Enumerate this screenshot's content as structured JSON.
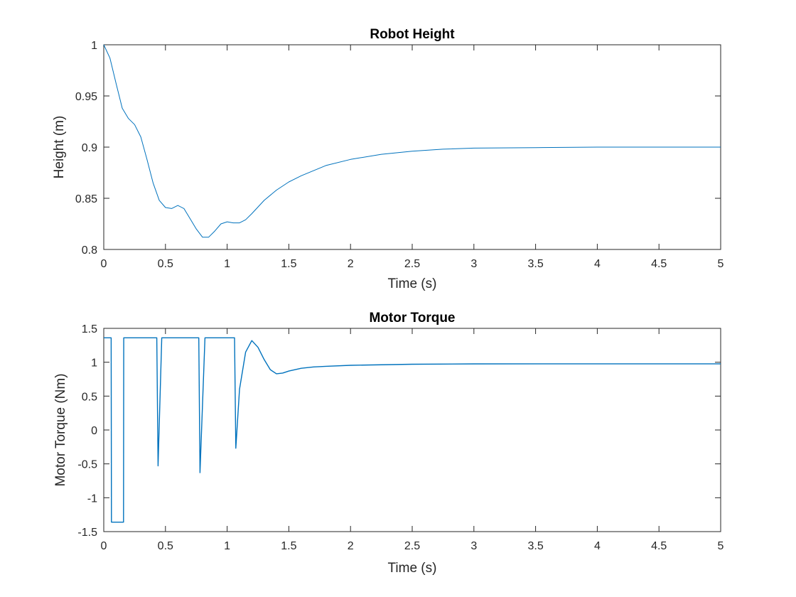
{
  "chart_data": [
    {
      "type": "line",
      "title": "Robot Height",
      "xlabel": "Time (s)",
      "ylabel": "Height (m)",
      "xlim": [
        0,
        5
      ],
      "ylim": [
        0.8,
        1
      ],
      "x_ticks": [
        "0",
        "0.5",
        "1",
        "1.5",
        "2",
        "2.5",
        "3",
        "3.5",
        "4",
        "4.5",
        "5"
      ],
      "y_ticks": [
        "0.8",
        "0.85",
        "0.9",
        "0.95",
        "1"
      ],
      "grid": false,
      "series_color": "#0072BD",
      "series": [
        {
          "x": [
            0,
            0.05,
            0.1,
            0.15,
            0.2,
            0.25,
            0.3,
            0.35,
            0.4,
            0.45,
            0.5,
            0.55,
            0.6,
            0.65,
            0.7,
            0.75,
            0.8,
            0.85,
            0.9,
            0.95,
            1.0,
            1.05,
            1.1,
            1.15,
            1.2,
            1.3,
            1.4,
            1.5,
            1.6,
            1.8,
            2.0,
            2.25,
            2.5,
            2.75,
            3.0,
            3.5,
            4.0,
            4.5,
            5.0
          ],
          "values": [
            1.0,
            0.987,
            0.962,
            0.938,
            0.928,
            0.922,
            0.91,
            0.888,
            0.865,
            0.848,
            0.841,
            0.84,
            0.843,
            0.84,
            0.83,
            0.82,
            0.812,
            0.812,
            0.818,
            0.825,
            0.827,
            0.826,
            0.826,
            0.829,
            0.835,
            0.848,
            0.858,
            0.866,
            0.872,
            0.882,
            0.888,
            0.893,
            0.896,
            0.898,
            0.899,
            0.8995,
            0.9,
            0.9,
            0.9
          ]
        }
      ]
    },
    {
      "type": "line",
      "title": "Motor Torque",
      "xlabel": "Time (s)",
      "ylabel": "Motor Torque (Nm)",
      "xlim": [
        0,
        5
      ],
      "ylim": [
        -1.5,
        1.5
      ],
      "x_ticks": [
        "0",
        "0.5",
        "1",
        "1.5",
        "2",
        "2.5",
        "3",
        "3.5",
        "4",
        "4.5",
        "5"
      ],
      "y_ticks": [
        "-1.5",
        "-1",
        "-0.5",
        "0",
        "0.5",
        "1",
        "1.5"
      ],
      "grid": false,
      "series_color": "#0072BD",
      "series": [
        {
          "x": [
            0,
            0.06,
            0.062,
            0.16,
            0.162,
            0.43,
            0.44,
            0.47,
            0.77,
            0.78,
            0.82,
            1.06,
            1.07,
            1.1,
            1.15,
            1.2,
            1.25,
            1.3,
            1.35,
            1.4,
            1.45,
            1.5,
            1.6,
            1.7,
            1.8,
            2.0,
            2.5,
            3.0,
            4.0,
            5.0
          ],
          "values": [
            1.36,
            1.36,
            -1.36,
            -1.36,
            1.36,
            1.36,
            -0.53,
            1.36,
            1.36,
            -0.63,
            1.36,
            1.36,
            -0.27,
            0.6,
            1.15,
            1.32,
            1.22,
            1.04,
            0.89,
            0.83,
            0.84,
            0.87,
            0.91,
            0.93,
            0.94,
            0.955,
            0.97,
            0.975,
            0.977,
            0.977
          ]
        }
      ]
    }
  ]
}
